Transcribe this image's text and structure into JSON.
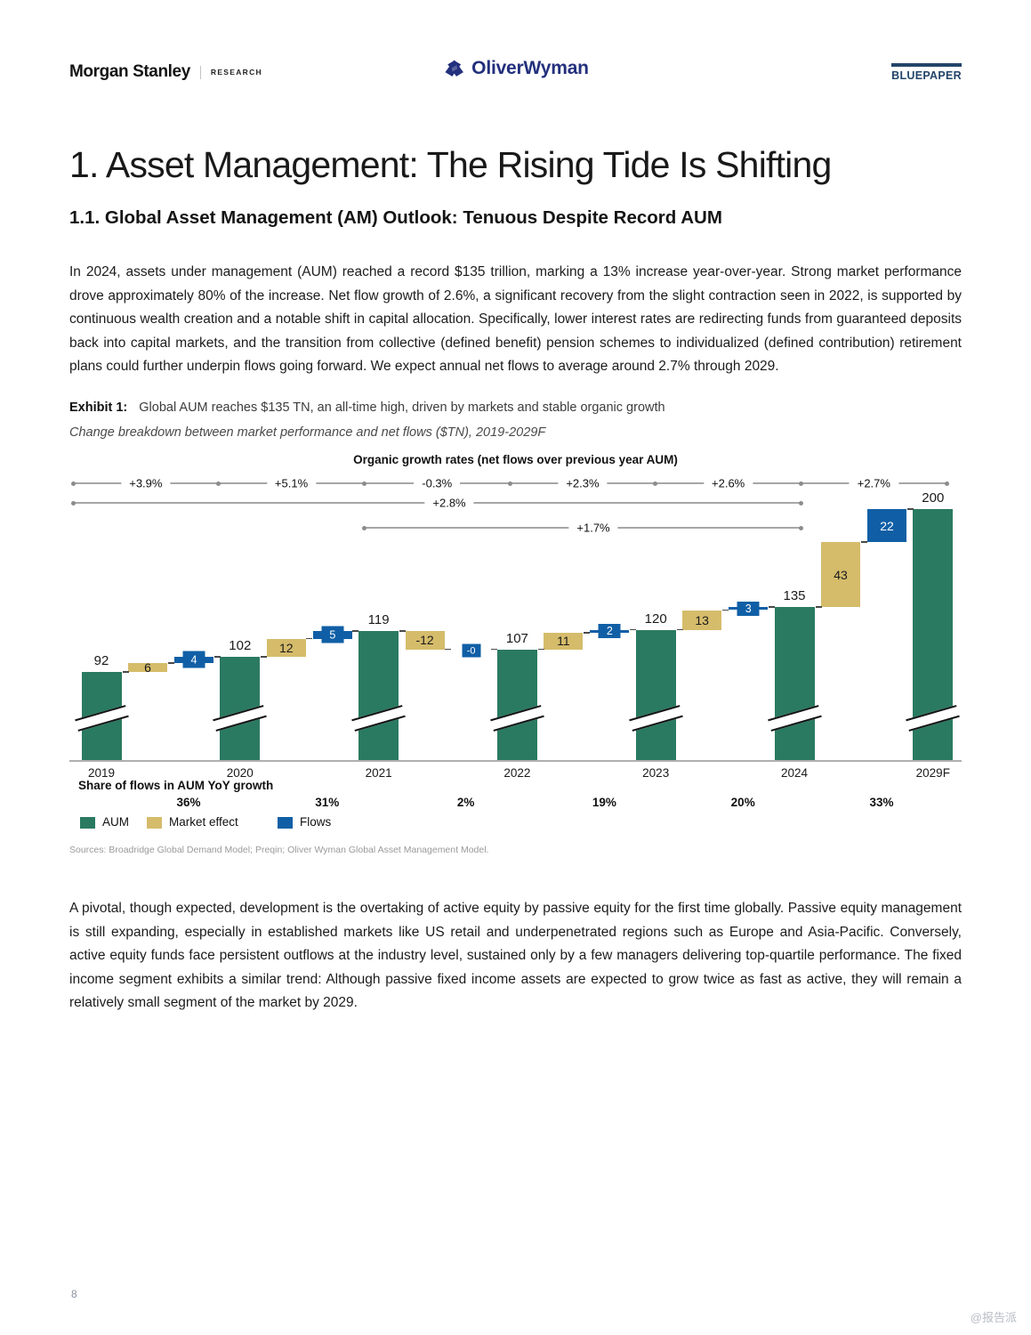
{
  "header": {
    "brand": "Morgan Stanley",
    "brand_sub": "RESEARCH",
    "center_logo": "OliverWyman",
    "badge": "BLUEPAPER",
    "brand_navy": "#23307d",
    "badge_navy": "#234569"
  },
  "title": "1. Asset Management: The Rising Tide Is Shifting",
  "section_heading": "1.1. Global Asset Management (AM) Outlook: Tenuous Despite Record AUM",
  "paragraph1": "In 2024, assets under management (AUM) reached a record $135 trillion, marking a 13% increase year-over-year. Strong market performance drove approximately 80% of the increase. Net flow growth of 2.6%, a significant recovery from the slight contraction seen in 2022, is supported by continuous wealth creation and a notable shift in capital allocation. Specifically, lower interest rates are redirecting funds from guaranteed deposits back into capital markets, and the transition from collective (defined benefit) pension schemes to individualized (defined contribution) retirement plans could further underpin flows going forward. We expect annual net flows to average around 2.7% through 2029.",
  "exhibit": {
    "label": "Exhibit 1:",
    "title": "Global AUM reaches $135 TN, an all-time high, driven by markets and stable organic growth",
    "subtitle": "Change breakdown between market performance and net flows ($TN), 2019-2029F"
  },
  "chart_data": {
    "type": "bar",
    "subtype": "waterfall",
    "title": "Organic growth rates (net flows over previous year AUM)",
    "categories": [
      "2019",
      "2020",
      "2021",
      "2022",
      "2023",
      "2024",
      "2029F"
    ],
    "series": [
      {
        "name": "AUM",
        "values": [
          92,
          102,
          119,
          107,
          120,
          135,
          200
        ]
      },
      {
        "name": "Market effect",
        "values": [
          6,
          12,
          -12,
          11,
          13,
          43
        ]
      },
      {
        "name": "Flows",
        "values": [
          4,
          5,
          0,
          2,
          3,
          22
        ]
      }
    ],
    "aum": [
      92,
      102,
      119,
      107,
      120,
      135,
      200
    ],
    "market_effect": [
      6,
      12,
      -12,
      11,
      13,
      43
    ],
    "market_labels": [
      "6",
      "12",
      "-12",
      "11",
      "13",
      "43"
    ],
    "flows": [
      4,
      5,
      0,
      2,
      3,
      22
    ],
    "flow_labels": [
      "4",
      "5",
      "-0",
      "2",
      "3",
      "22"
    ],
    "organic_growth_segments": [
      "+3.9%",
      "+5.1%",
      "-0.3%",
      "+2.3%",
      "+2.6%",
      "+2.7%"
    ],
    "growth_spans": [
      {
        "from": 0,
        "to": 5,
        "label": "+2.8%"
      },
      {
        "from": 2,
        "to": 5,
        "label": "+1.7%"
      }
    ],
    "share_of_flows": {
      "title": "Share of flows in AUM YoY growth",
      "values": [
        "36%",
        "31%",
        "2%",
        "19%",
        "20%",
        "33%"
      ]
    },
    "legend": [
      {
        "label": "AUM",
        "color": "#2a7a61"
      },
      {
        "label": "Market effect",
        "color": "#d5bc6b"
      },
      {
        "label": "Flows",
        "color": "#105fa6"
      }
    ],
    "legend_position": "bottom-left",
    "axis_break": true,
    "sources": "Sources: Broadridge Global Demand Model; Preqin; Oliver Wyman Global Asset Management Model."
  },
  "paragraph2": "A pivotal, though expected, development is the overtaking of active equity by passive equity for the first time globally. Passive equity management is still expanding, especially in established markets like US retail and underpenetrated regions such as Europe and Asia-Pacific. Conversely, active equity funds face persistent outflows at the industry level, sustained only by a few managers delivering top-quartile performance. The fixed income segment exhibits a similar trend: Although passive fixed income assets are expected to grow twice as fast as active, they will remain a relatively small segment of the market by 2029.",
  "page": {
    "number": "8",
    "watermark": "@报告派"
  }
}
